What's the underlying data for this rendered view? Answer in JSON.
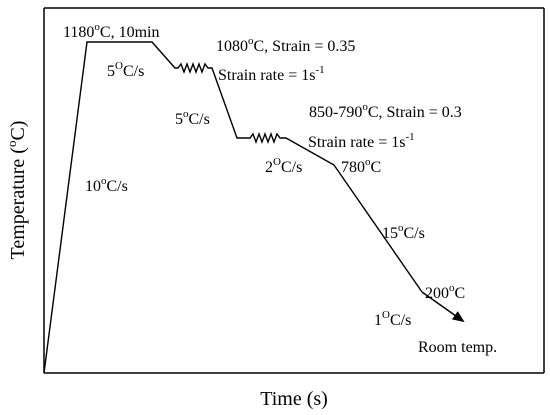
{
  "axes": {
    "xlabel": "Time (s)",
    "ylabel_base": "Temperature (",
    "ylabel_sup": "o",
    "ylabel_tail": "C)"
  },
  "labels": {
    "soak": {
      "pre": "1180",
      "sup": "o",
      "post": "C, 10min"
    },
    "pass1": {
      "pre": "1080",
      "sup": "o",
      "post": "C, Strain = 0.35"
    },
    "rate1": {
      "pre": "Strain rate = 1s",
      "sup": "-1"
    },
    "pass2": {
      "text": "850-790",
      "sup": "o",
      "post": "C, Strain = 0.3"
    },
    "rate2": {
      "pre": "Strain rate = 1s",
      "sup": "-1"
    },
    "heat_rate": {
      "pre": "10",
      "sup": "o",
      "post": "C/s"
    },
    "cool1": {
      "pre": "5",
      "sup": "O",
      "post": "C/s"
    },
    "cool2": {
      "pre": "5",
      "sup": "o",
      "post": "C/s"
    },
    "cool3": {
      "pre": "2",
      "sup": "O",
      "post": "C/s"
    },
    "finish": {
      "pre": "780",
      "sup": "o",
      "post": "C"
    },
    "cool4": {
      "pre": "15",
      "sup": "o",
      "post": "C/s"
    },
    "coil": {
      "pre": "200",
      "sup": "o",
      "post": "C"
    },
    "cool5": {
      "pre": "1",
      "sup": "O",
      "post": "C/s"
    },
    "room": "Room temp."
  },
  "colors": {
    "line": "#000000",
    "background": "#ffffff"
  }
}
